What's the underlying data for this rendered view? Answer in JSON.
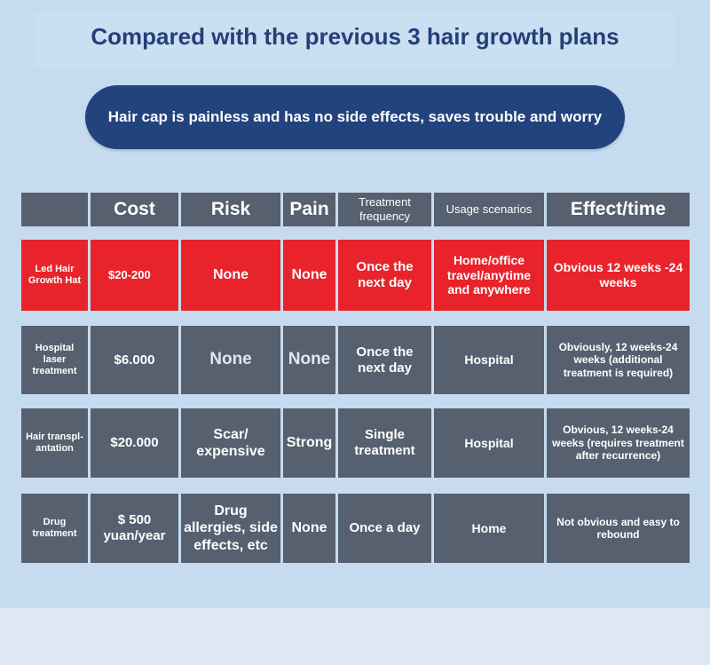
{
  "title": "Compared with the previous 3 hair growth plans",
  "banner": "Hair cap is painless and has no side effects, saves trouble and worry",
  "table": {
    "headers": [
      "",
      "Cost",
      "Risk",
      "Pain",
      "Treatment frequency",
      "Usage scenarios",
      "Effect/time"
    ],
    "rows": [
      {
        "highlight": true,
        "cells": [
          "Led Hair Growth Hat",
          "$20-200",
          "None",
          "None",
          "Once the next day",
          "Home/office travel/anytime and anywhere",
          "Obvious 12 weeks -24 weeks"
        ]
      },
      {
        "highlight": false,
        "cells": [
          "Hospital laser treatment",
          "$6.000",
          "None",
          "None",
          "Once the next day",
          "Hospital",
          "Obviously, 12 weeks-24 weeks (additional treatment is required)"
        ]
      },
      {
        "highlight": false,
        "cells": [
          "Hair transpl-antation",
          "$20.000",
          "Scar/ expensive",
          "Strong",
          "Single treatment",
          "Hospital",
          "Obvious, 12 weeks-24 weeks (requires treatment after recurrence)"
        ]
      },
      {
        "highlight": false,
        "cells": [
          "Drug treatment",
          "$ 500 yuan/year",
          "Drug allergies, side effects, etc",
          "None",
          "Once a day",
          "Home",
          "Not obvious and easy to rebound"
        ]
      }
    ]
  },
  "colors": {
    "header": "#56606e",
    "highlight": "#e8232b",
    "banner": "#22437d",
    "title": "#243f78",
    "background": "#c6dbef"
  }
}
